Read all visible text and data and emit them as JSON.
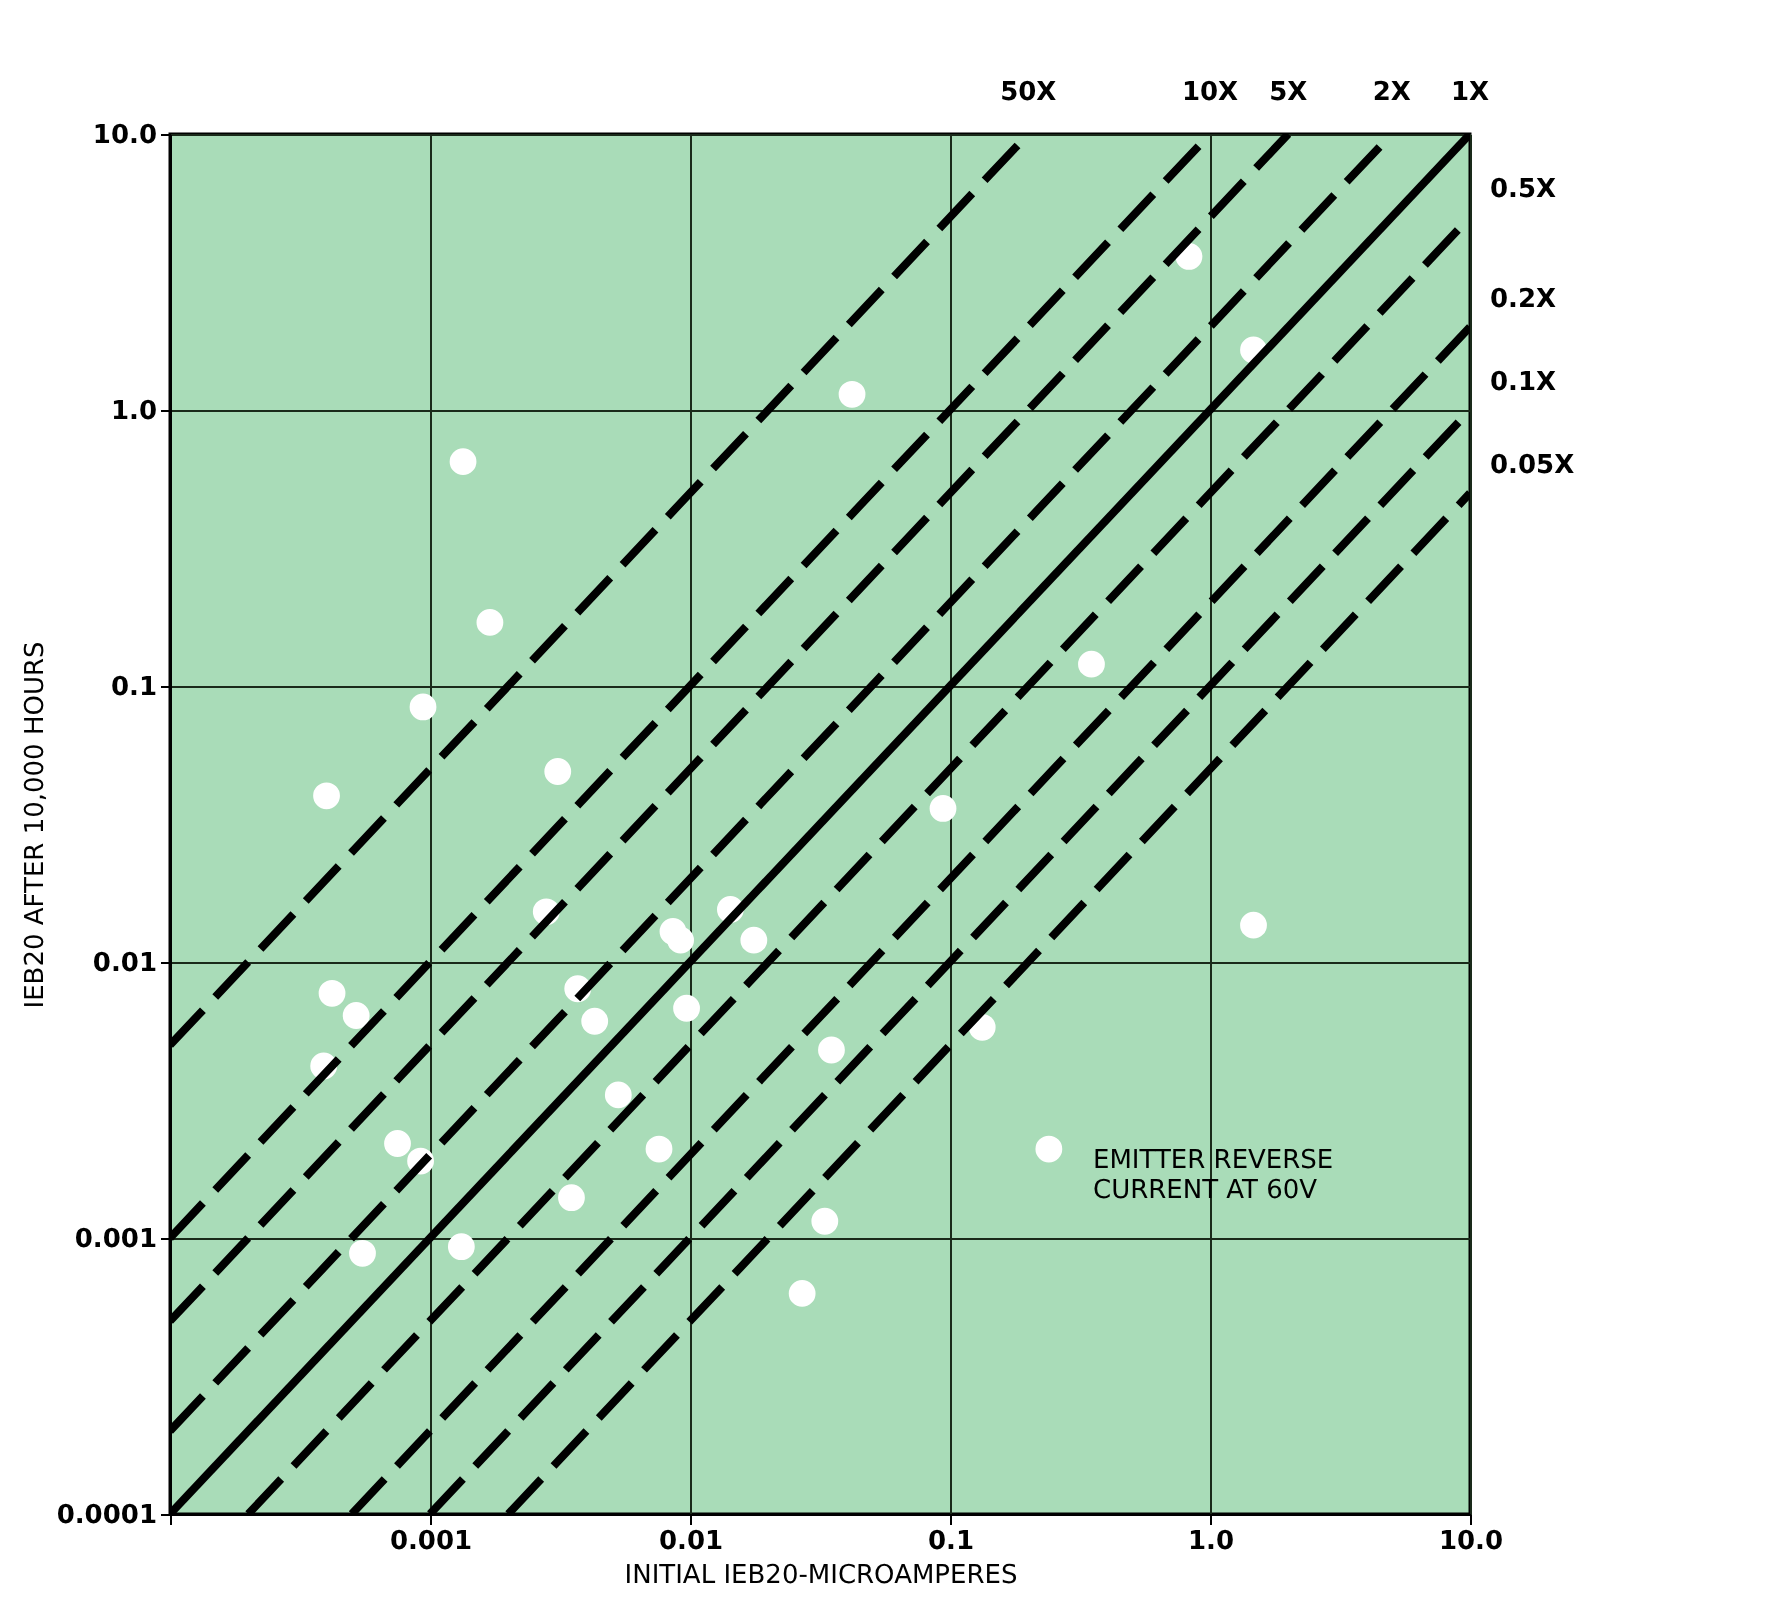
{
  "chart_data": {
    "type": "scatter",
    "xlabel": "INITIAL IEB20-MICROAMPERES",
    "ylabel": "IEB20 AFTER 10,000 HOURS",
    "annotations": [
      "EMITTER REVERSE\nCURRENT AT 60V"
    ],
    "log": "xy",
    "grid": true,
    "legend": false,
    "marker": "circle",
    "xlim": [
      0.0001,
      10
    ],
    "xticks": [
      {
        "value": 0.0001,
        "label": null
      },
      0.001,
      0.01,
      0.1,
      {
        "value": 1,
        "label": "1.0"
      },
      {
        "value": 10,
        "label": "10.0"
      }
    ],
    "ylim": [
      0.0001,
      10
    ],
    "yticks": [
      0.0001,
      0.001,
      0.01,
      0.1,
      {
        "value": 1,
        "label": "1.0"
      },
      {
        "value": 10,
        "label": "10.0"
      }
    ],
    "series": [
      {
        "color": "#ffffff",
        "x": [
          0.00134,
          0.0017,
          0.00094,
          0.0004,
          0.0031,
          0.042,
          1.47,
          0.83,
          1.47,
          0.24,
          0.033,
          0.133,
          0.35,
          0.0028,
          0.0092,
          0.00042,
          0.00052,
          0.00039,
          0.00075,
          0.00092,
          0.00055,
          0.00132,
          0.0037,
          0.0043,
          0.0053,
          0.0076,
          0.0035,
          0.0086,
          0.0097,
          0.027,
          0.0143,
          0.0176,
          0.094,
          0.035
        ],
        "values": [
          0.65,
          0.17,
          0.084,
          0.04,
          0.049,
          1.14,
          1.65,
          3.6,
          0.0136,
          0.0021,
          0.00115,
          0.0058,
          0.12,
          0.0152,
          0.012,
          0.0077,
          0.0064,
          0.0042,
          0.0022,
          0.0019,
          0.00088,
          0.00093,
          0.008,
          0.0061,
          0.0033,
          0.0021,
          0.0014,
          0.0129,
          0.0068,
          0.00063,
          0.0155,
          0.012,
          0.036,
          0.0048
        ]
      },
      {
        "type": "line",
        "name": "50X",
        "color": "#000000",
        "line_style": "dashed",
        "marker": "none",
        "x": [
          0.0001,
          0.2
        ],
        "values": [
          0.005,
          10
        ]
      },
      {
        "type": "line",
        "name": "10X",
        "color": "#000000",
        "line_style": "dashed",
        "marker": "none",
        "x": [
          0.0001,
          1
        ],
        "values": [
          0.001,
          10
        ]
      },
      {
        "type": "line",
        "name": "5X",
        "color": "#000000",
        "line_style": "dashed",
        "marker": "none",
        "x": [
          0.0001,
          2
        ],
        "values": [
          0.0005,
          10
        ]
      },
      {
        "type": "line",
        "name": "2X",
        "color": "#000000",
        "line_style": "dashed",
        "marker": "none",
        "x": [
          0.0001,
          5
        ],
        "values": [
          0.0002,
          10
        ]
      },
      {
        "type": "line",
        "name": "1X",
        "color": "#000000",
        "line_style": "solid",
        "marker": "none",
        "x": [
          0.0001,
          10
        ],
        "values": [
          0.0001,
          10
        ]
      },
      {
        "type": "line",
        "name": "0.5X",
        "color": "#000000",
        "line_style": "dashed",
        "marker": "none",
        "x": [
          0.0002,
          10
        ],
        "values": [
          0.0001,
          5
        ]
      },
      {
        "type": "line",
        "name": "0.2X",
        "color": "#000000",
        "line_style": "dashed",
        "marker": "none",
        "x": [
          0.0005,
          10
        ],
        "values": [
          0.0001,
          2
        ]
      },
      {
        "type": "line",
        "name": "0.1X",
        "color": "#000000",
        "line_style": "dashed",
        "marker": "none",
        "x": [
          0.001,
          10
        ],
        "values": [
          0.0001,
          1
        ]
      },
      {
        "type": "line",
        "name": "0.05X",
        "color": "#000000",
        "line_style": "dashed",
        "marker": "none",
        "x": [
          0.002,
          10
        ],
        "values": [
          0.0001,
          0.5
        ]
      }
    ]
  }
}
